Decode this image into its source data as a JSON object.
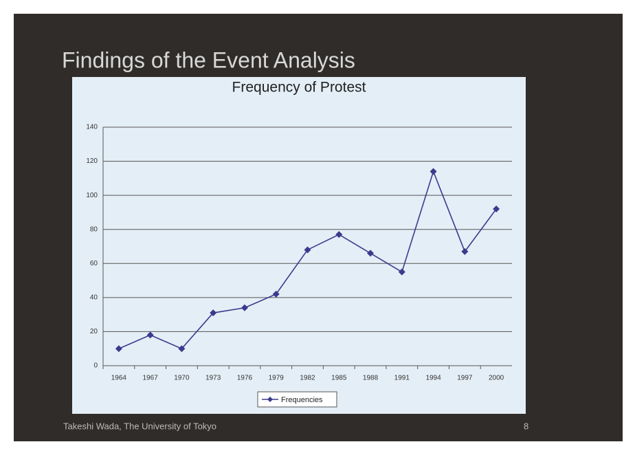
{
  "slide": {
    "title": "Findings of the Event Analysis",
    "footer": "Takeshi Wada, The University of Tokyo",
    "page_number": "8"
  },
  "chart_data": {
    "type": "line",
    "title": "Frequency of Protest",
    "categories": [
      "1964",
      "1967",
      "1970",
      "1973",
      "1976",
      "1979",
      "1982",
      "1985",
      "1988",
      "1991",
      "1994",
      "1997",
      "2000"
    ],
    "series": [
      {
        "name": "Frequencies",
        "color": "#3c3a8e",
        "values": [
          10,
          18,
          10,
          31,
          34,
          42,
          68,
          77,
          66,
          55,
          114,
          67,
          92
        ]
      }
    ],
    "ylim": [
      0,
      140
    ],
    "yticks": [
      0,
      20,
      40,
      60,
      80,
      100,
      120,
      140
    ],
    "grid": true,
    "legend": "bottom"
  }
}
